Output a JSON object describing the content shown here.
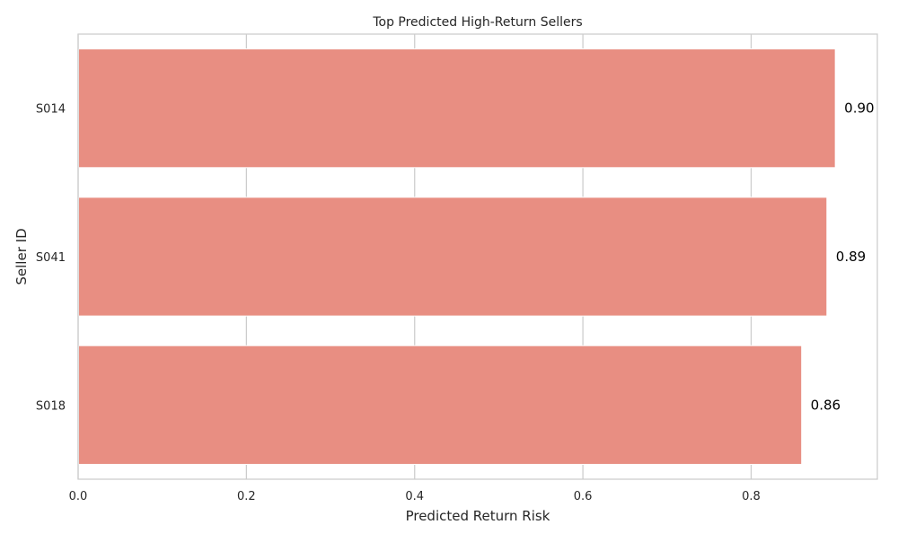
{
  "chart_data": {
    "type": "bar",
    "orientation": "horizontal",
    "title": "Top Predicted High-Return Sellers",
    "xlabel": "Predicted Return Risk",
    "ylabel": "Seller ID",
    "categories": [
      "S014",
      "S041",
      "S018"
    ],
    "values": [
      0.9,
      0.89,
      0.86
    ],
    "value_labels": [
      "0.90",
      "0.89",
      "0.86"
    ],
    "xlim": [
      0,
      0.95
    ],
    "xticks": [
      0.0,
      0.2,
      0.4,
      0.6,
      0.8
    ],
    "xtick_labels": [
      "0.0",
      "0.2",
      "0.4",
      "0.6",
      "0.8"
    ],
    "grid": true,
    "bar_color": "#e88e82"
  }
}
